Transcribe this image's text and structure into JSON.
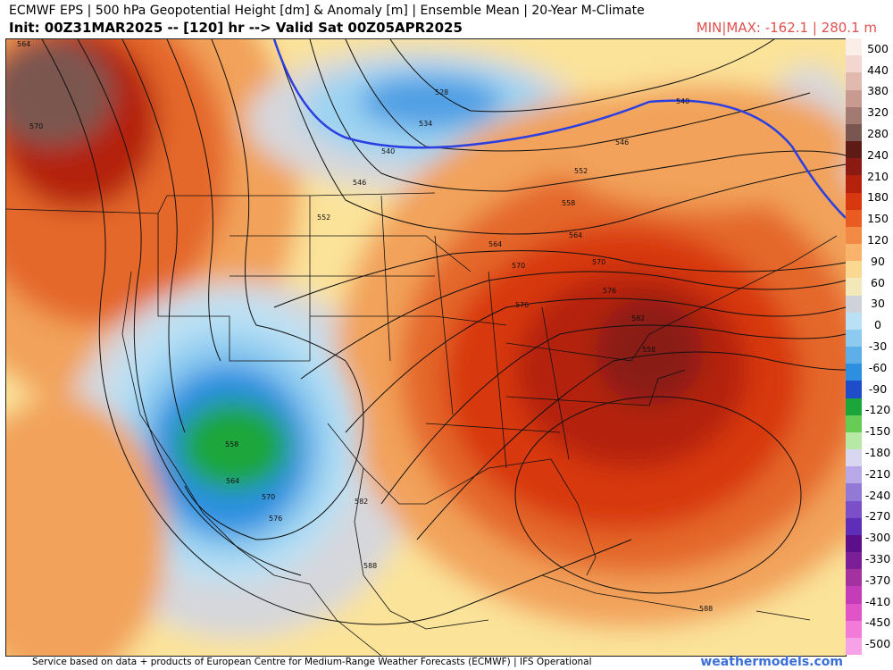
{
  "header": {
    "title": "ECMWF EPS | 500 hPa Geopotential Height [dm] & Anomaly [m] | Ensemble Mean | 20-Year M-Climate",
    "init_line": "Init: 00Z31MAR2025 -- [120] hr --> Valid Sat 00Z05APR2025",
    "minmax": "MIN|MAX: -162.1 | 280.1 m"
  },
  "colorbar": {
    "labels": [
      "500",
      "440",
      "380",
      "320",
      "280",
      "240",
      "210",
      "180",
      "150",
      "120",
      "90",
      "60",
      "30",
      "0",
      "-30",
      "-60",
      "-90",
      "-120",
      "-150",
      "-180",
      "-210",
      "-240",
      "-270",
      "-300",
      "-330",
      "-370",
      "-410",
      "-450",
      "-500"
    ],
    "colors": [
      "#fbeee8",
      "#f2d6cf",
      "#e2b9ae",
      "#c99a8f",
      "#a37a72",
      "#7a5650",
      "#5e1a14",
      "#8a1a12",
      "#b4220e",
      "#d8380f",
      "#ea5b22",
      "#f28a45",
      "#f9b36c",
      "#fbd891",
      "#f3e9b8",
      "#cfd2d8",
      "#b9e0f4",
      "#8ccaf0",
      "#5eaee8",
      "#2c8fe0",
      "#1f4cc8",
      "#1ca63a",
      "#66cc55",
      "#b7e8a6",
      "#d8d6f0",
      "#b8a8e8",
      "#9379d6",
      "#7a4fc8",
      "#5f2eb8",
      "#5b0f8a",
      "#7a1f98",
      "#a3329f",
      "#c43cb8",
      "#e054c8",
      "#f27ad8",
      "#f7a2e6"
    ]
  },
  "map": {
    "contour_labels": [
      "564",
      "570",
      "528",
      "534",
      "540",
      "546",
      "552",
      "558",
      "564",
      "570",
      "576",
      "582",
      "582",
      "588",
      "588",
      "546",
      "552",
      "558",
      "564",
      "570",
      "576",
      "558",
      "564",
      "570",
      "576",
      "540"
    ]
  },
  "footer": {
    "credit": "Service based on data + products of European Centre for Medium-Range Weather Forecasts (ECMWF) | IFS Operational",
    "site": "weathermodels.com"
  }
}
